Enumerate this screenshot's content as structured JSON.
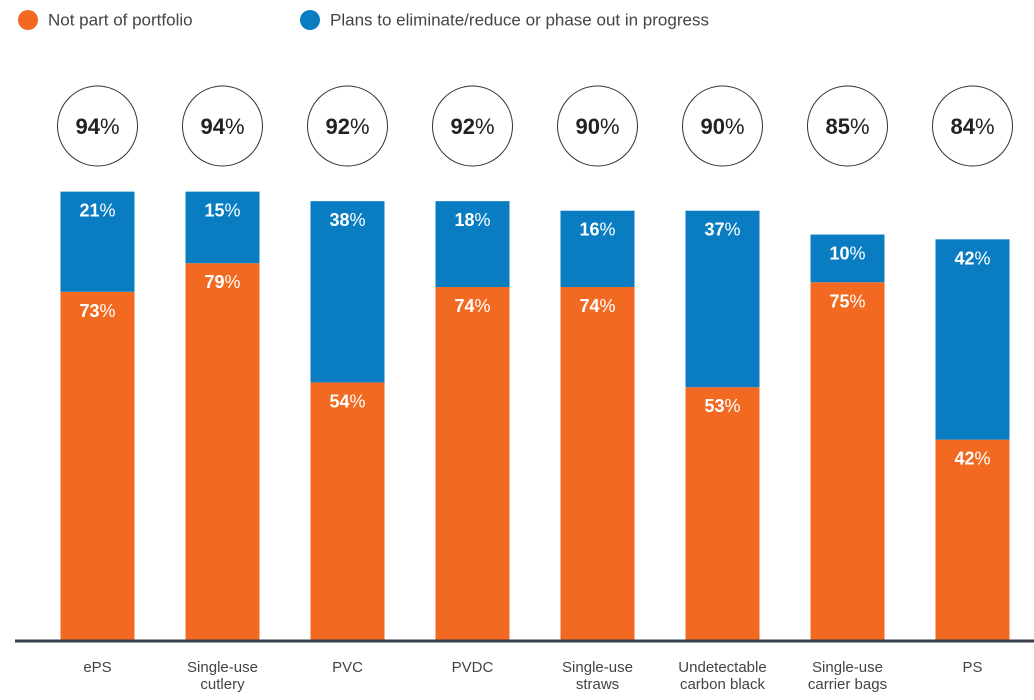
{
  "chart_data": {
    "type": "stacked_bar",
    "categories": [
      "ePS",
      "Single-use cutlery",
      "PVC",
      "PVDC",
      "Single-use straws",
      "Undetectable carbon black",
      "Single-use carrier bags",
      "PS"
    ],
    "series": [
      {
        "name": "Not part of portfolio",
        "color": "#f26a21",
        "values": [
          73,
          79,
          54,
          74,
          74,
          53,
          75,
          42
        ],
        "value_labels": [
          "73%",
          "79%",
          "54%",
          "74%",
          "74%",
          "53%",
          "75%",
          "42%"
        ]
      },
      {
        "name": "Plans to eliminate/reduce or phase out in progress",
        "color": "#0a7dc2",
        "values": [
          21,
          15,
          38,
          18,
          16,
          37,
          10,
          42
        ],
        "value_labels": [
          "21%",
          "15%",
          "38%",
          "18%",
          "16%",
          "37%",
          "10%",
          "42%"
        ]
      }
    ],
    "totals": [
      94,
      94,
      92,
      92,
      90,
      90,
      85,
      84
    ],
    "totals_labels": [
      "94%",
      "94%",
      "92%",
      "92%",
      "90%",
      "90%",
      "85%",
      "84%"
    ],
    "ylim": [
      0,
      100
    ],
    "legend": "top-left"
  }
}
